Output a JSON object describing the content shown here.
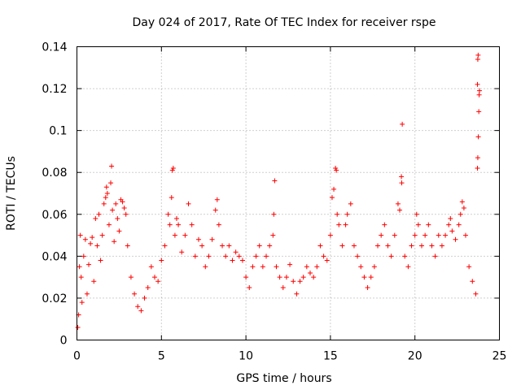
{
  "chart_data": {
    "type": "scatter",
    "title": "Day 024 of 2017, Rate Of TEC Index for receiver rspe",
    "xlabel": "GPS time / hours",
    "ylabel": "ROTI / TECUs",
    "xlim": [
      0,
      25
    ],
    "ylim": [
      0,
      0.14
    ],
    "xticks": [
      0,
      5,
      10,
      15,
      20,
      25
    ],
    "yticks": [
      0,
      0.02,
      0.04,
      0.06,
      0.08,
      0.1,
      0.12,
      0.14
    ],
    "xtick_labels": [
      "0",
      "5",
      "10",
      "15",
      "20",
      "25"
    ],
    "ytick_labels": [
      "0",
      "0.02",
      "0.04",
      "0.06",
      "0.08",
      "0.1",
      "0.12",
      "0.14"
    ],
    "grid": true,
    "marker": "+",
    "color": "#ff0000",
    "series": [
      {
        "name": "ROTI",
        "points": [
          [
            0.05,
            0.006
          ],
          [
            0.1,
            0.012
          ],
          [
            0.15,
            0.035
          ],
          [
            0.2,
            0.05
          ],
          [
            0.25,
            0.03
          ],
          [
            0.3,
            0.018
          ],
          [
            0.4,
            0.04
          ],
          [
            0.5,
            0.048
          ],
          [
            0.6,
            0.022
          ],
          [
            0.7,
            0.036
          ],
          [
            0.8,
            0.046
          ],
          [
            0.9,
            0.049
          ],
          [
            1.0,
            0.028
          ],
          [
            1.1,
            0.058
          ],
          [
            1.2,
            0.045
          ],
          [
            1.3,
            0.06
          ],
          [
            1.4,
            0.038
          ],
          [
            1.5,
            0.05
          ],
          [
            1.6,
            0.065
          ],
          [
            1.7,
            0.068
          ],
          [
            1.75,
            0.073
          ],
          [
            1.8,
            0.07
          ],
          [
            1.9,
            0.055
          ],
          [
            2.0,
            0.075
          ],
          [
            2.05,
            0.083
          ],
          [
            2.1,
            0.062
          ],
          [
            2.2,
            0.047
          ],
          [
            2.3,
            0.065
          ],
          [
            2.4,
            0.058
          ],
          [
            2.5,
            0.052
          ],
          [
            2.6,
            0.067
          ],
          [
            2.7,
            0.066
          ],
          [
            2.8,
            0.063
          ],
          [
            2.9,
            0.06
          ],
          [
            3.0,
            0.045
          ],
          [
            3.2,
            0.03
          ],
          [
            3.4,
            0.022
          ],
          [
            3.6,
            0.016
          ],
          [
            3.8,
            0.014
          ],
          [
            4.0,
            0.02
          ],
          [
            4.2,
            0.025
          ],
          [
            4.4,
            0.035
          ],
          [
            4.6,
            0.03
          ],
          [
            4.8,
            0.028
          ],
          [
            5.0,
            0.038
          ],
          [
            5.2,
            0.045
          ],
          [
            5.4,
            0.06
          ],
          [
            5.5,
            0.055
          ],
          [
            5.6,
            0.068
          ],
          [
            5.65,
            0.081
          ],
          [
            5.7,
            0.082
          ],
          [
            5.8,
            0.05
          ],
          [
            5.9,
            0.058
          ],
          [
            6.0,
            0.055
          ],
          [
            6.2,
            0.042
          ],
          [
            6.4,
            0.05
          ],
          [
            6.6,
            0.065
          ],
          [
            6.8,
            0.055
          ],
          [
            7.0,
            0.04
          ],
          [
            7.2,
            0.048
          ],
          [
            7.4,
            0.045
          ],
          [
            7.6,
            0.035
          ],
          [
            7.8,
            0.04
          ],
          [
            8.0,
            0.048
          ],
          [
            8.2,
            0.062
          ],
          [
            8.3,
            0.067
          ],
          [
            8.4,
            0.055
          ],
          [
            8.6,
            0.045
          ],
          [
            8.8,
            0.04
          ],
          [
            9.0,
            0.045
          ],
          [
            9.2,
            0.038
          ],
          [
            9.4,
            0.042
          ],
          [
            9.6,
            0.04
          ],
          [
            9.8,
            0.038
          ],
          [
            10.0,
            0.03
          ],
          [
            10.2,
            0.025
          ],
          [
            10.4,
            0.035
          ],
          [
            10.6,
            0.04
          ],
          [
            10.8,
            0.045
          ],
          [
            11.0,
            0.035
          ],
          [
            11.2,
            0.04
          ],
          [
            11.4,
            0.045
          ],
          [
            11.6,
            0.05
          ],
          [
            11.65,
            0.06
          ],
          [
            11.7,
            0.076
          ],
          [
            11.8,
            0.035
          ],
          [
            12.0,
            0.03
          ],
          [
            12.2,
            0.025
          ],
          [
            12.4,
            0.03
          ],
          [
            12.6,
            0.036
          ],
          [
            12.8,
            0.028
          ],
          [
            13.0,
            0.022
          ],
          [
            13.2,
            0.028
          ],
          [
            13.4,
            0.03
          ],
          [
            13.6,
            0.035
          ],
          [
            13.8,
            0.032
          ],
          [
            14.0,
            0.03
          ],
          [
            14.2,
            0.035
          ],
          [
            14.4,
            0.045
          ],
          [
            14.6,
            0.04
          ],
          [
            14.8,
            0.038
          ],
          [
            15.0,
            0.05
          ],
          [
            15.1,
            0.068
          ],
          [
            15.2,
            0.072
          ],
          [
            15.3,
            0.082
          ],
          [
            15.35,
            0.081
          ],
          [
            15.4,
            0.06
          ],
          [
            15.5,
            0.055
          ],
          [
            15.7,
            0.045
          ],
          [
            15.9,
            0.055
          ],
          [
            16.0,
            0.06
          ],
          [
            16.2,
            0.065
          ],
          [
            16.4,
            0.045
          ],
          [
            16.6,
            0.04
          ],
          [
            16.8,
            0.035
          ],
          [
            17.0,
            0.03
          ],
          [
            17.2,
            0.025
          ],
          [
            17.4,
            0.03
          ],
          [
            17.6,
            0.035
          ],
          [
            17.8,
            0.045
          ],
          [
            18.0,
            0.05
          ],
          [
            18.2,
            0.055
          ],
          [
            18.4,
            0.045
          ],
          [
            18.6,
            0.04
          ],
          [
            18.8,
            0.05
          ],
          [
            19.0,
            0.065
          ],
          [
            19.1,
            0.062
          ],
          [
            19.2,
            0.078
          ],
          [
            19.22,
            0.075
          ],
          [
            19.25,
            0.103
          ],
          [
            19.4,
            0.04
          ],
          [
            19.6,
            0.035
          ],
          [
            19.8,
            0.045
          ],
          [
            20.0,
            0.05
          ],
          [
            20.1,
            0.06
          ],
          [
            20.2,
            0.055
          ],
          [
            20.4,
            0.045
          ],
          [
            20.6,
            0.05
          ],
          [
            20.8,
            0.055
          ],
          [
            21.0,
            0.045
          ],
          [
            21.2,
            0.04
          ],
          [
            21.4,
            0.05
          ],
          [
            21.6,
            0.045
          ],
          [
            21.8,
            0.05
          ],
          [
            22.0,
            0.055
          ],
          [
            22.1,
            0.058
          ],
          [
            22.2,
            0.052
          ],
          [
            22.4,
            0.048
          ],
          [
            22.6,
            0.055
          ],
          [
            22.7,
            0.06
          ],
          [
            22.8,
            0.066
          ],
          [
            22.9,
            0.063
          ],
          [
            23.0,
            0.05
          ],
          [
            23.2,
            0.035
          ],
          [
            23.4,
            0.028
          ],
          [
            23.6,
            0.022
          ],
          [
            23.7,
            0.082
          ],
          [
            23.72,
            0.087
          ],
          [
            23.75,
            0.097
          ],
          [
            23.78,
            0.109
          ],
          [
            23.8,
            0.117
          ],
          [
            23.82,
            0.119
          ],
          [
            23.7,
            0.122
          ],
          [
            23.72,
            0.134
          ],
          [
            23.74,
            0.136
          ]
        ]
      }
    ]
  }
}
